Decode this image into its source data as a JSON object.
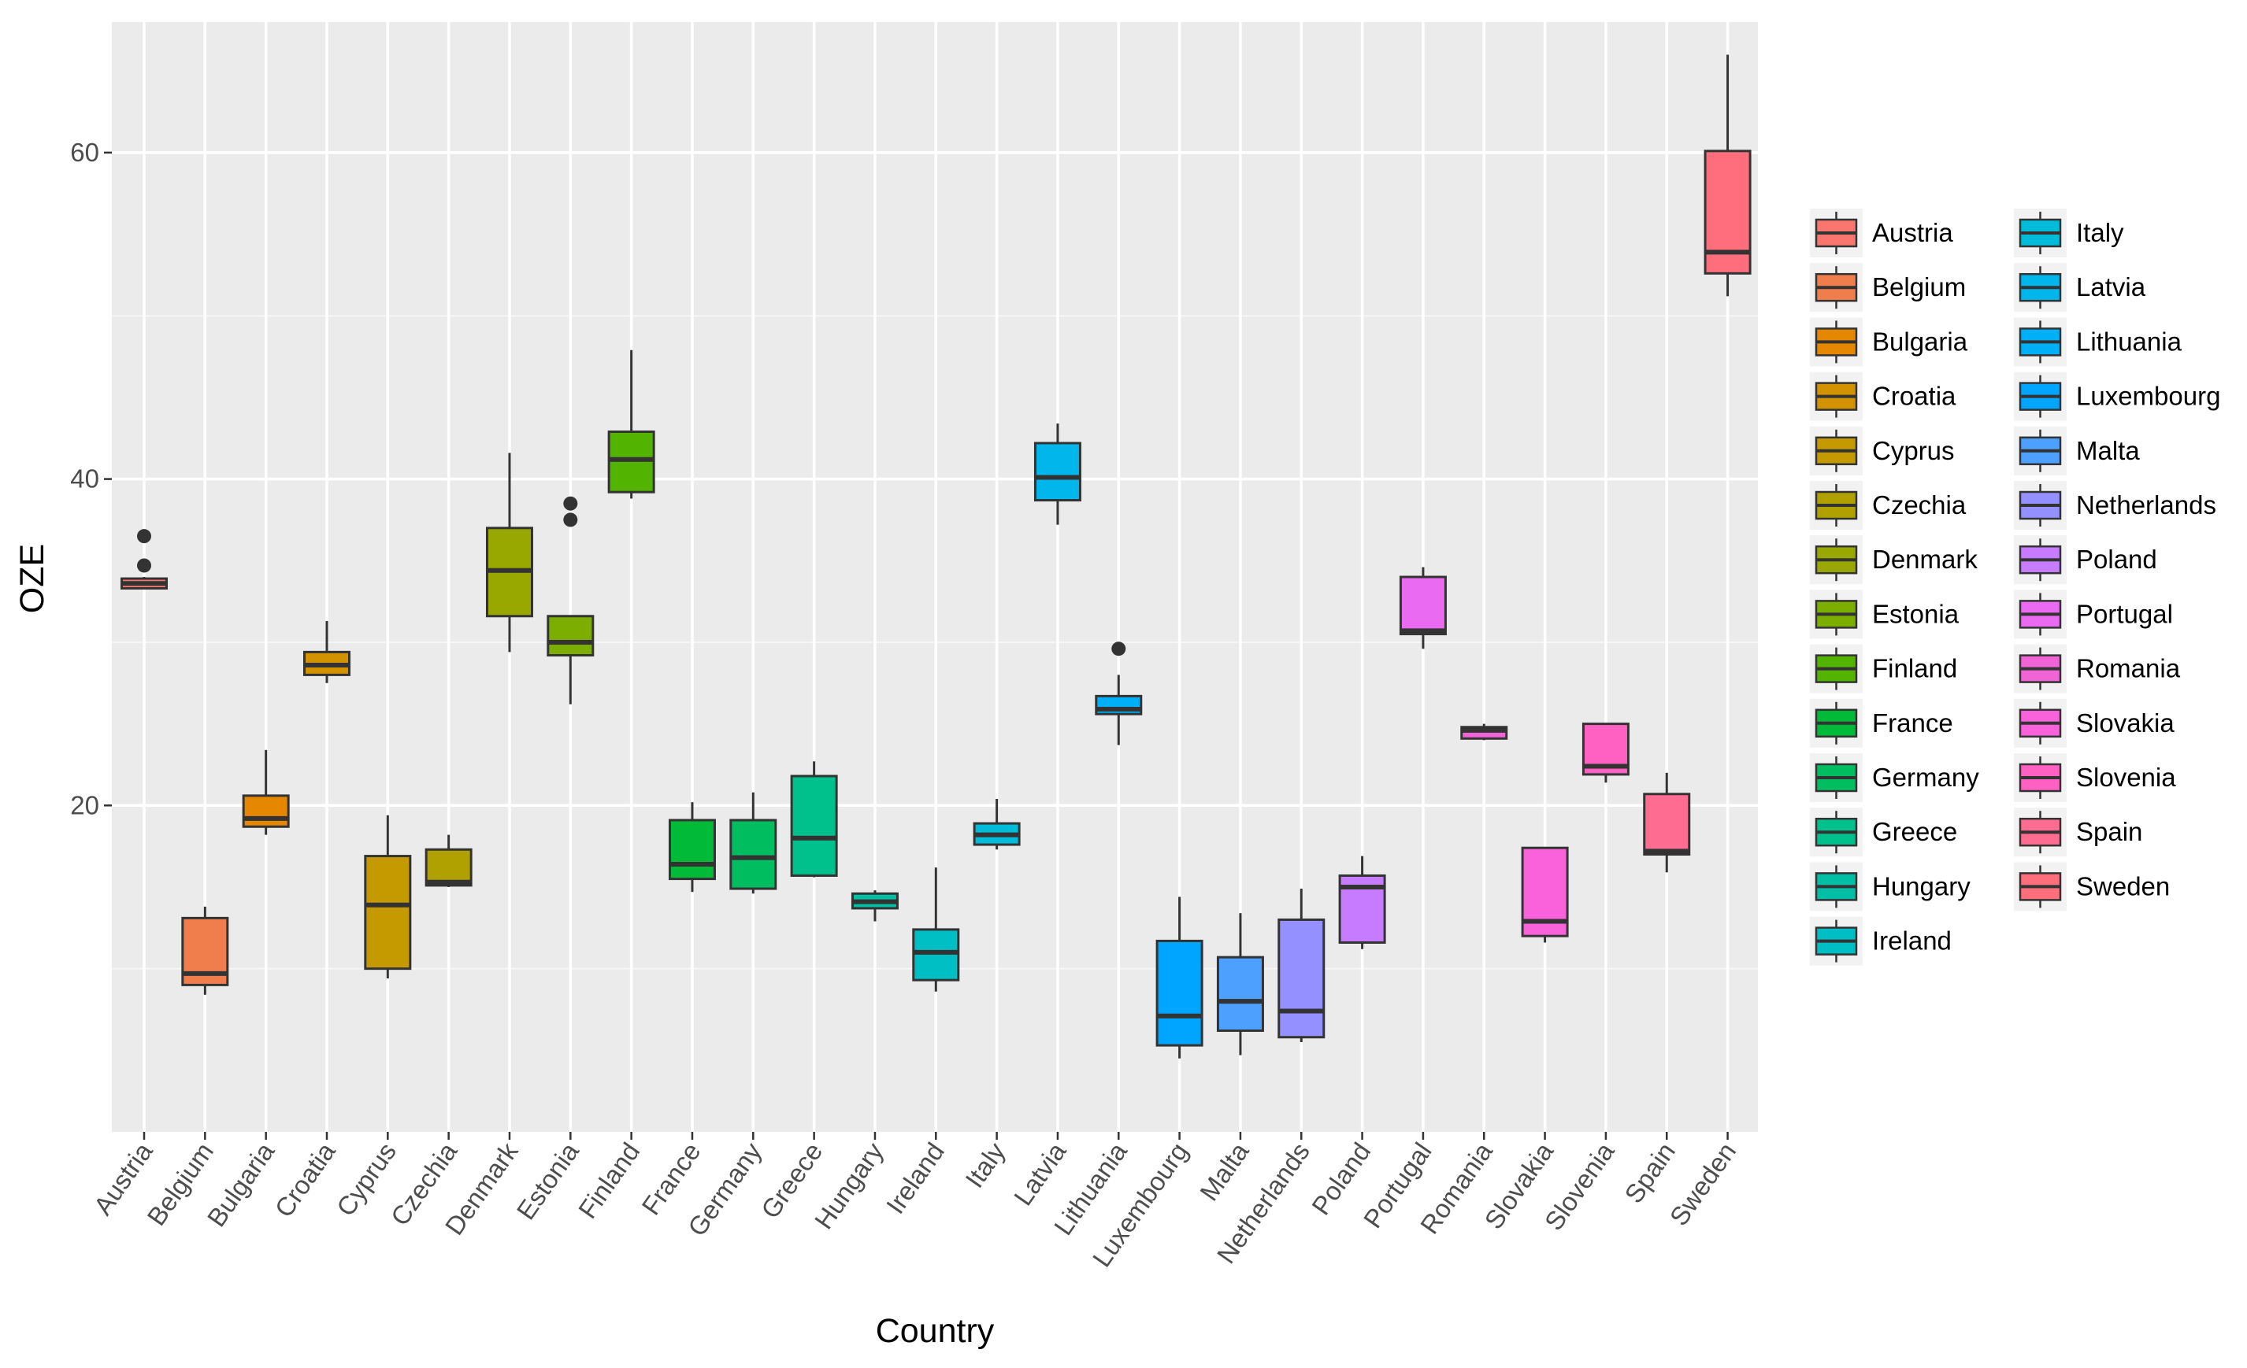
{
  "chart_data": {
    "type": "boxplot",
    "title": "",
    "xlabel": "Country",
    "ylabel": "OZE",
    "ylim": [
      0,
      68
    ],
    "yticks": [
      20,
      40,
      60
    ],
    "legend_position": "right",
    "legend_columns": 2,
    "categories": [
      "Austria",
      "Belgium",
      "Bulgaria",
      "Croatia",
      "Cyprus",
      "Czechia",
      "Denmark",
      "Estonia",
      "Finland",
      "France",
      "Germany",
      "Greece",
      "Hungary",
      "Ireland",
      "Italy",
      "Latvia",
      "Lithuania",
      "Luxembourg",
      "Malta",
      "Netherlands",
      "Poland",
      "Portugal",
      "Romania",
      "Slovakia",
      "Slovenia",
      "Spain",
      "Sweden"
    ],
    "colors": [
      "#F8766D",
      "#F07E4D",
      "#E58700",
      "#D39200",
      "#C49A00",
      "#B0A100",
      "#99A800",
      "#7CAE00",
      "#53B400",
      "#00BA38",
      "#00BD5F",
      "#00C08B",
      "#00BFA5",
      "#00BFC4",
      "#00BCD8",
      "#00B6EB",
      "#00B0F6",
      "#00A5FF",
      "#4EA0FF",
      "#9590FF",
      "#C77CFF",
      "#EA6AF1",
      "#F064D5",
      "#FA62DB",
      "#FF61C3",
      "#FF6C91",
      "#FF6E7D"
    ],
    "boxes": [
      {
        "name": "Austria",
        "min": 33.3,
        "q1": 33.3,
        "median": 33.6,
        "q3": 33.9,
        "max": 34.0,
        "outliers": [
          34.7,
          36.5
        ]
      },
      {
        "name": "Belgium",
        "min": 8.4,
        "q1": 9.0,
        "median": 9.7,
        "q3": 13.1,
        "max": 13.8,
        "outliers": []
      },
      {
        "name": "Bulgaria",
        "min": 18.2,
        "q1": 18.7,
        "median": 19.2,
        "q3": 20.6,
        "max": 23.4,
        "outliers": []
      },
      {
        "name": "Croatia",
        "min": 27.5,
        "q1": 28.0,
        "median": 28.6,
        "q3": 29.4,
        "max": 31.3,
        "outliers": []
      },
      {
        "name": "Cyprus",
        "min": 9.4,
        "q1": 10.0,
        "median": 13.9,
        "q3": 16.9,
        "max": 19.4,
        "outliers": []
      },
      {
        "name": "Czechia",
        "min": 15.0,
        "q1": 15.1,
        "median": 15.3,
        "q3": 17.3,
        "max": 18.2,
        "outliers": []
      },
      {
        "name": "Denmark",
        "min": 29.4,
        "q1": 31.6,
        "median": 34.4,
        "q3": 37.0,
        "max": 41.6,
        "outliers": []
      },
      {
        "name": "Estonia",
        "min": 26.2,
        "q1": 29.2,
        "median": 30.0,
        "q3": 31.6,
        "max": 31.6,
        "outliers": [
          37.5,
          38.5
        ]
      },
      {
        "name": "Finland",
        "min": 38.8,
        "q1": 39.2,
        "median": 41.2,
        "q3": 42.9,
        "max": 47.9,
        "outliers": []
      },
      {
        "name": "France",
        "min": 14.7,
        "q1": 15.5,
        "median": 16.4,
        "q3": 19.1,
        "max": 20.2,
        "outliers": []
      },
      {
        "name": "Germany",
        "min": 14.6,
        "q1": 14.9,
        "median": 16.8,
        "q3": 19.1,
        "max": 20.8,
        "outliers": []
      },
      {
        "name": "Greece",
        "min": 15.6,
        "q1": 15.7,
        "median": 18.0,
        "q3": 21.8,
        "max": 22.7,
        "outliers": []
      },
      {
        "name": "Hungary",
        "min": 12.9,
        "q1": 13.7,
        "median": 14.1,
        "q3": 14.6,
        "max": 14.8,
        "outliers": []
      },
      {
        "name": "Ireland",
        "min": 8.6,
        "q1": 9.3,
        "median": 11.0,
        "q3": 12.4,
        "max": 16.2,
        "outliers": []
      },
      {
        "name": "Italy",
        "min": 17.3,
        "q1": 17.6,
        "median": 18.2,
        "q3": 18.9,
        "max": 20.4,
        "outliers": []
      },
      {
        "name": "Latvia",
        "min": 37.2,
        "q1": 38.7,
        "median": 40.1,
        "q3": 42.2,
        "max": 43.4,
        "outliers": []
      },
      {
        "name": "Lithuania",
        "min": 23.7,
        "q1": 25.6,
        "median": 25.9,
        "q3": 26.7,
        "max": 28.0,
        "outliers": [
          29.6
        ]
      },
      {
        "name": "Luxembourg",
        "min": 4.5,
        "q1": 5.3,
        "median": 7.1,
        "q3": 11.7,
        "max": 14.4,
        "outliers": []
      },
      {
        "name": "Malta",
        "min": 4.7,
        "q1": 6.2,
        "median": 8.0,
        "q3": 10.7,
        "max": 13.4,
        "outliers": []
      },
      {
        "name": "Netherlands",
        "min": 5.5,
        "q1": 5.8,
        "median": 7.4,
        "q3": 13.0,
        "max": 14.9,
        "outliers": []
      },
      {
        "name": "Poland",
        "min": 11.2,
        "q1": 11.6,
        "median": 15.0,
        "q3": 15.7,
        "max": 16.9,
        "outliers": []
      },
      {
        "name": "Portugal",
        "min": 29.6,
        "q1": 30.5,
        "median": 30.7,
        "q3": 34.0,
        "max": 34.6,
        "outliers": []
      },
      {
        "name": "Romania",
        "min": 24.0,
        "q1": 24.1,
        "median": 24.6,
        "q3": 24.8,
        "max": 25.0,
        "outliers": []
      },
      {
        "name": "Slovakia",
        "min": 11.6,
        "q1": 12.0,
        "median": 12.9,
        "q3": 17.4,
        "max": 17.4,
        "outliers": []
      },
      {
        "name": "Slovenia",
        "min": 21.4,
        "q1": 21.9,
        "median": 22.4,
        "q3": 25.0,
        "max": 25.0,
        "outliers": []
      },
      {
        "name": "Spain",
        "min": 15.9,
        "q1": 17.0,
        "median": 17.2,
        "q3": 20.7,
        "max": 22.0,
        "outliers": []
      },
      {
        "name": "Sweden",
        "min": 51.2,
        "q1": 52.6,
        "median": 53.9,
        "q3": 60.1,
        "max": 66.0,
        "outliers": []
      }
    ]
  }
}
